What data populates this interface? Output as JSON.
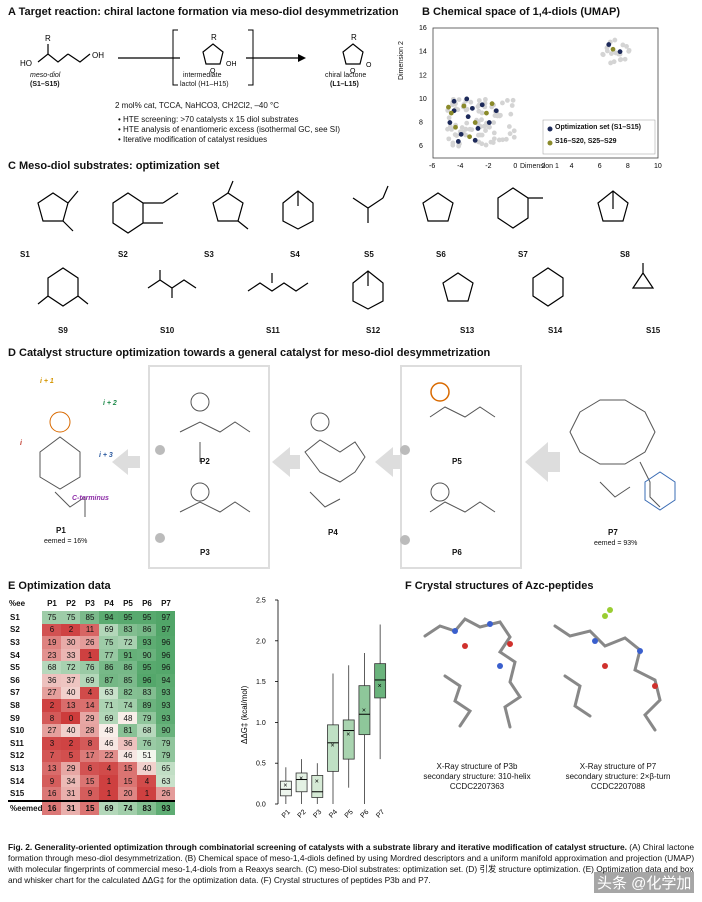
{
  "panelA": {
    "title": "A Target reaction: chiral lactone formation via meso-diol desymmetrization",
    "meso_label": "meso-diol",
    "meso_ids": "(S1–S15)",
    "intermediate_label": "intermediate",
    "lactol_label": "lactol (H1–H15)",
    "lactone_label": "chiral lactone",
    "lactone_ids": "(L1–L15)",
    "conditions": "2 mol% cat, TCCA, NaHCO3, CH2Cl2, –40 °C",
    "bullets": [
      "HTE screening: >70 catalysts x 15 diol substrates",
      "HTE analysis of enantiomeric excess (isothermal GC, see SI)",
      "Iterative modification of catalyst residues"
    ]
  },
  "panelB": {
    "title": "B Chemical space of 1,4-diols (UMAP)",
    "xlabel": "Dimension 1",
    "ylabel": "Dimension 2",
    "legend": [
      "Optimization set (S1–S15)",
      "S16–S20, S25–S29"
    ],
    "colors": {
      "opt": "#1d2a5a",
      "other": "#8a8a2a",
      "bg": "#cfcfcf"
    }
  },
  "panelC": {
    "title": "C Meso-diol substrates: optimization set",
    "substrates": [
      "S1",
      "S2",
      "S3",
      "S4",
      "S5",
      "S6",
      "S7",
      "S8",
      "S9",
      "S10",
      "S11",
      "S12",
      "S13",
      "S14",
      "S15"
    ]
  },
  "panelD": {
    "title": "D Catalyst structure optimization towards a general catalyst for meso-diol desymmetrization",
    "catalysts": [
      "P1",
      "P2",
      "P3",
      "P4",
      "P5",
      "P6",
      "P7"
    ],
    "p1_ee": "eemed = 16%",
    "p7_ee": "eemed = 93%",
    "labels": {
      "i1": "i + 1",
      "i2": "i + 2",
      "i": "i",
      "i3": "i + 3",
      "cterm": "C-terminus"
    }
  },
  "panelE": {
    "title": "E Optimization data",
    "corner": "%ee",
    "columns": [
      "P1",
      "P2",
      "P3",
      "P4",
      "P5",
      "P6",
      "P7"
    ],
    "rows": [
      {
        "name": "S1",
        "values": [
          75,
          75,
          85,
          94,
          95,
          95,
          97
        ]
      },
      {
        "name": "S2",
        "values": [
          6,
          2,
          11,
          69,
          83,
          86,
          97
        ]
      },
      {
        "name": "S3",
        "values": [
          19,
          30,
          26,
          75,
          72,
          93,
          96
        ]
      },
      {
        "name": "S4",
        "values": [
          23,
          33,
          1,
          77,
          91,
          90,
          96
        ]
      },
      {
        "name": "S5",
        "values": [
          68,
          72,
          76,
          86,
          86,
          95,
          96
        ]
      },
      {
        "name": "S6",
        "values": [
          36,
          37,
          69,
          87,
          85,
          96,
          94
        ]
      },
      {
        "name": "S7",
        "values": [
          27,
          40,
          4,
          63,
          82,
          83,
          93
        ]
      },
      {
        "name": "S8",
        "values": [
          2,
          13,
          14,
          71,
          74,
          89,
          93
        ]
      },
      {
        "name": "S9",
        "values": [
          8,
          0,
          29,
          69,
          48,
          79,
          93
        ]
      },
      {
        "name": "S10",
        "values": [
          27,
          40,
          28,
          48,
          81,
          68,
          90
        ]
      },
      {
        "name": "S11",
        "values": [
          3,
          2,
          8,
          46,
          36,
          76,
          79
        ]
      },
      {
        "name": "S12",
        "values": [
          7,
          5,
          17,
          22,
          46,
          51,
          79
        ]
      },
      {
        "name": "S13",
        "values": [
          13,
          29,
          6,
          4,
          15,
          40,
          65
        ]
      },
      {
        "name": "S14",
        "values": [
          9,
          34,
          15,
          1,
          15,
          4,
          63
        ]
      },
      {
        "name": "S15",
        "values": [
          16,
          31,
          9,
          1,
          20,
          1,
          26
        ]
      }
    ],
    "median_label": "%eemed",
    "medians": [
      16,
      31,
      15,
      69,
      74,
      83,
      93
    ]
  },
  "chart_data": {
    "type": "box",
    "title": "",
    "xlabel": "",
    "ylabel": "ΔΔG‡ (kcal/mol)",
    "ylim": [
      0,
      2.5
    ],
    "yticks": [
      "0.0",
      "0.5",
      "1.0",
      "1.5",
      "2.0",
      "2.5"
    ],
    "categories": [
      "P1",
      "P2",
      "P3",
      "P4",
      "P5",
      "P6",
      "P7"
    ],
    "boxes": [
      {
        "q1": 0.1,
        "median": 0.18,
        "q3": 0.28,
        "mean": 0.23,
        "low": 0.0,
        "high": 0.45
      },
      {
        "q1": 0.15,
        "median": 0.3,
        "q3": 0.38,
        "mean": 0.32,
        "low": 0.0,
        "high": 0.55
      },
      {
        "q1": 0.08,
        "median": 0.15,
        "q3": 0.35,
        "mean": 0.28,
        "low": 0.0,
        "high": 0.5
      },
      {
        "q1": 0.4,
        "median": 0.75,
        "q3": 0.97,
        "mean": 0.72,
        "low": 0.0,
        "high": 1.6
      },
      {
        "q1": 0.55,
        "median": 0.9,
        "q3": 1.03,
        "mean": 0.86,
        "low": 0.2,
        "high": 1.7
      },
      {
        "q1": 0.85,
        "median": 1.1,
        "q3": 1.45,
        "mean": 1.15,
        "low": 0.0,
        "high": 1.85
      },
      {
        "q1": 1.3,
        "median": 1.52,
        "q3": 1.72,
        "mean": 1.45,
        "low": 0.55,
        "high": 2.2
      }
    ],
    "colors": [
      "#eef6ee",
      "#e4f1e4",
      "#d6ead6",
      "#bfe0c4",
      "#a9d4b0",
      "#8ec79a",
      "#6ab37c"
    ]
  },
  "panelF": {
    "title": "F Crystal structures of Azc-peptides",
    "left": [
      "X-Ray structure of P3b",
      "secondary structure: 310-helix",
      "CCDC2207363"
    ],
    "right": [
      "X-Ray structure of P7",
      "secondary structure: 2×β-turn",
      "CCDC2207088"
    ]
  },
  "caption": {
    "bold": "Fig. 2. Generality-oriented optimization through combinatorial screening of catalysts with a substrate library and iterative modification of catalyst structure.",
    "text": " (A) Chiral lactone formation through meso-diol desymmetrization. (B) Chemical space of meso-1,4-diols defined by using Mordred descriptors and a uniform manifold approximation and projection (UMAP) with molecular fingerprints of commercial meso-1,4-diols from a Reaxys search. (C) meso-Diol substrates: optimization set. (D) 引发 structure optimization. (E) Optimization data and box and whisker chart for the calculated ΔΔG‡ for the optimization data. (F) Crystal structures of peptides P3b and P7.",
    "watermark": "头条 @化学加"
  }
}
